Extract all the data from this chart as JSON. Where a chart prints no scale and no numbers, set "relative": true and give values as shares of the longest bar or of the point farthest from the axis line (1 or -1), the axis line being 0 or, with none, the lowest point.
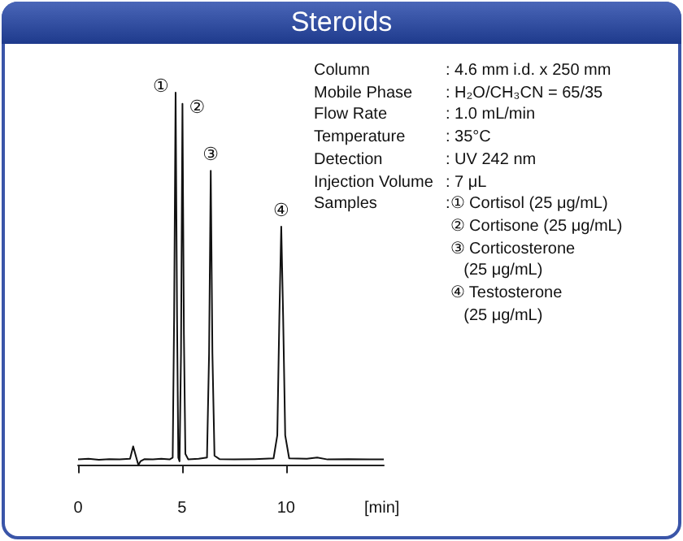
{
  "chart_data": {
    "type": "line",
    "title": "Steroids",
    "relative": true,
    "color": "#111111",
    "marker": "none",
    "line_style": "solid",
    "grid": false,
    "tick_labels": "x",
    "xlabel": "[min]",
    "xlim": [
      0,
      14.7
    ],
    "xticks": [
      0,
      5,
      10
    ],
    "x": [
      0,
      0.5,
      1,
      1.5,
      2,
      2.5,
      2.65,
      2.8,
      2.9,
      3.0,
      3.2,
      3.6,
      4,
      4.4,
      4.55,
      4.62,
      4.69,
      4.76,
      4.82,
      4.88,
      4.95,
      5.02,
      5.09,
      5.16,
      5.3,
      5.8,
      6.2,
      6.3,
      6.38,
      6.46,
      6.56,
      6.8,
      7.5,
      8.5,
      9.4,
      9.58,
      9.68,
      9.77,
      9.86,
      9.96,
      10.15,
      11,
      11.5,
      12,
      13,
      14,
      14.7
    ],
    "values": [
      0.015,
      0.017,
      0.014,
      0.016,
      0.015,
      0.017,
      0.05,
      0.02,
      0,
      0.01,
      0.016,
      0.015,
      0.017,
      0.015,
      0.02,
      0.4,
      1,
      0.4,
      0.02,
      0.01,
      0.3,
      0.97,
      0.35,
      0.03,
      0.015,
      0.017,
      0.02,
      0.3,
      0.79,
      0.3,
      0.025,
      0.016,
      0.015,
      0.016,
      0.018,
      0.08,
      0.4,
      0.64,
      0.4,
      0.08,
      0.018,
      0.017,
      0.02,
      0.015,
      0.016,
      0.015,
      0.015
    ],
    "annotations": [
      {
        "text": "①",
        "x": 4.69,
        "y": 1
      },
      {
        "text": "②",
        "x": 5.02,
        "y": 0.97
      },
      {
        "text": "③",
        "x": 6.38,
        "y": 0.79
      },
      {
        "text": "④",
        "x": 9.77,
        "y": 0.64
      },
      "Column",
      ": 4.6 mm i.d. x 250 mm",
      "Mobile Phase",
      ": H₂O/CH₃CN = 65/35",
      "Flow Rate",
      ": 1.0 mL/min",
      "Temperature",
      ": 35°C",
      "Detection",
      ": UV 242 nm",
      "Injection Volume",
      ": 7 μL",
      "Samples",
      ":① Cortisol (25 μg/mL)\n ② Cortisone (25 μg/mL)\n ③ Corticosterone\n    (25 μg/mL)\n ④ Testosterone\n    (25 μg/mL)"
    ]
  }
}
